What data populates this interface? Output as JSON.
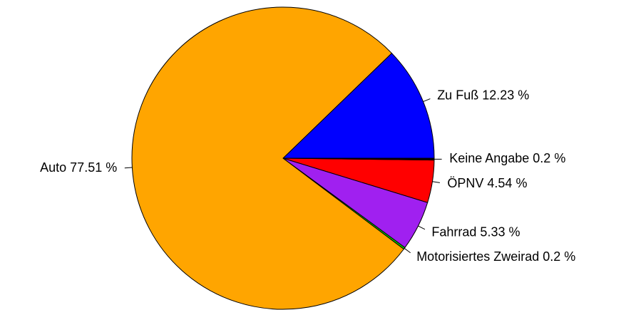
{
  "chart_data": {
    "type": "pie",
    "labels": [
      "Zu Fuß 12.23 %",
      "Auto 77.51 %",
      "Motorisiertes Zweirad 0.2 %",
      "Fahrrad 5.33 %",
      "ÖPNV 4.54 %",
      "Keine Angabe 0.2 %"
    ],
    "values": [
      12.23,
      77.51,
      0.2,
      5.33,
      4.54,
      0.2
    ],
    "colors": [
      "#0000ff",
      "#ffa500",
      "#00cd00",
      "#a020f0",
      "#ff0000",
      "#000000"
    ]
  }
}
